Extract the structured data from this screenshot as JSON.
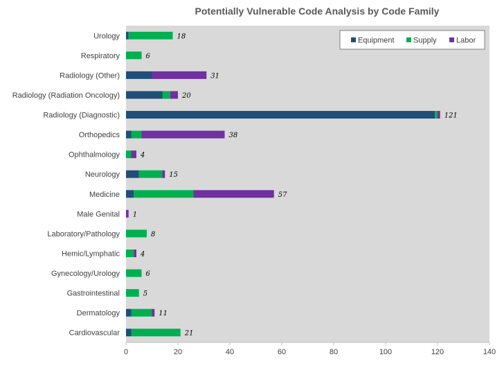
{
  "chart_data": {
    "type": "bar",
    "orientation": "horizontal",
    "stacked": true,
    "title": "Potentially Vulnerable Code Analysis by Code Family",
    "xlabel": "",
    "ylabel": "",
    "xlim": [
      0,
      140
    ],
    "x_ticks": [
      0,
      20,
      40,
      60,
      80,
      100,
      120,
      140
    ],
    "grid": false,
    "legend_position": "top-right",
    "categories": [
      "Urology",
      "Respiratory",
      "Radiology (Other)",
      "Radiology (Radiation Oncology)",
      "Radiology (Diagnostic)",
      "Orthopedics",
      "Ophthalmology",
      "Neurology",
      "Medicine",
      "Male Genital",
      "Laboratory/Pathology",
      "Hemic/Lymphatic",
      "Gynecology/Urology",
      "Gastrointestinal",
      "Dermatology",
      "Cardiovascular"
    ],
    "series": [
      {
        "name": "Equipment",
        "color": "#1f4e79",
        "values": [
          1,
          0,
          10,
          14,
          119,
          2,
          0,
          5,
          3,
          0,
          0,
          0,
          0,
          0,
          2,
          2
        ]
      },
      {
        "name": "Supply",
        "color": "#00b050",
        "values": [
          17,
          6,
          0,
          3,
          1,
          4,
          2,
          9,
          23,
          0,
          8,
          3,
          6,
          5,
          8,
          19
        ]
      },
      {
        "name": "Labor",
        "color": "#7030a0",
        "values": [
          0,
          0,
          21,
          3,
          1,
          32,
          2,
          1,
          31,
          1,
          0,
          1,
          0,
          0,
          1,
          0
        ]
      }
    ],
    "totals": [
      18,
      6,
      31,
      20,
      121,
      38,
      4,
      15,
      57,
      1,
      8,
      4,
      6,
      5,
      11,
      21
    ],
    "plot_background": "#d9d9d9"
  }
}
